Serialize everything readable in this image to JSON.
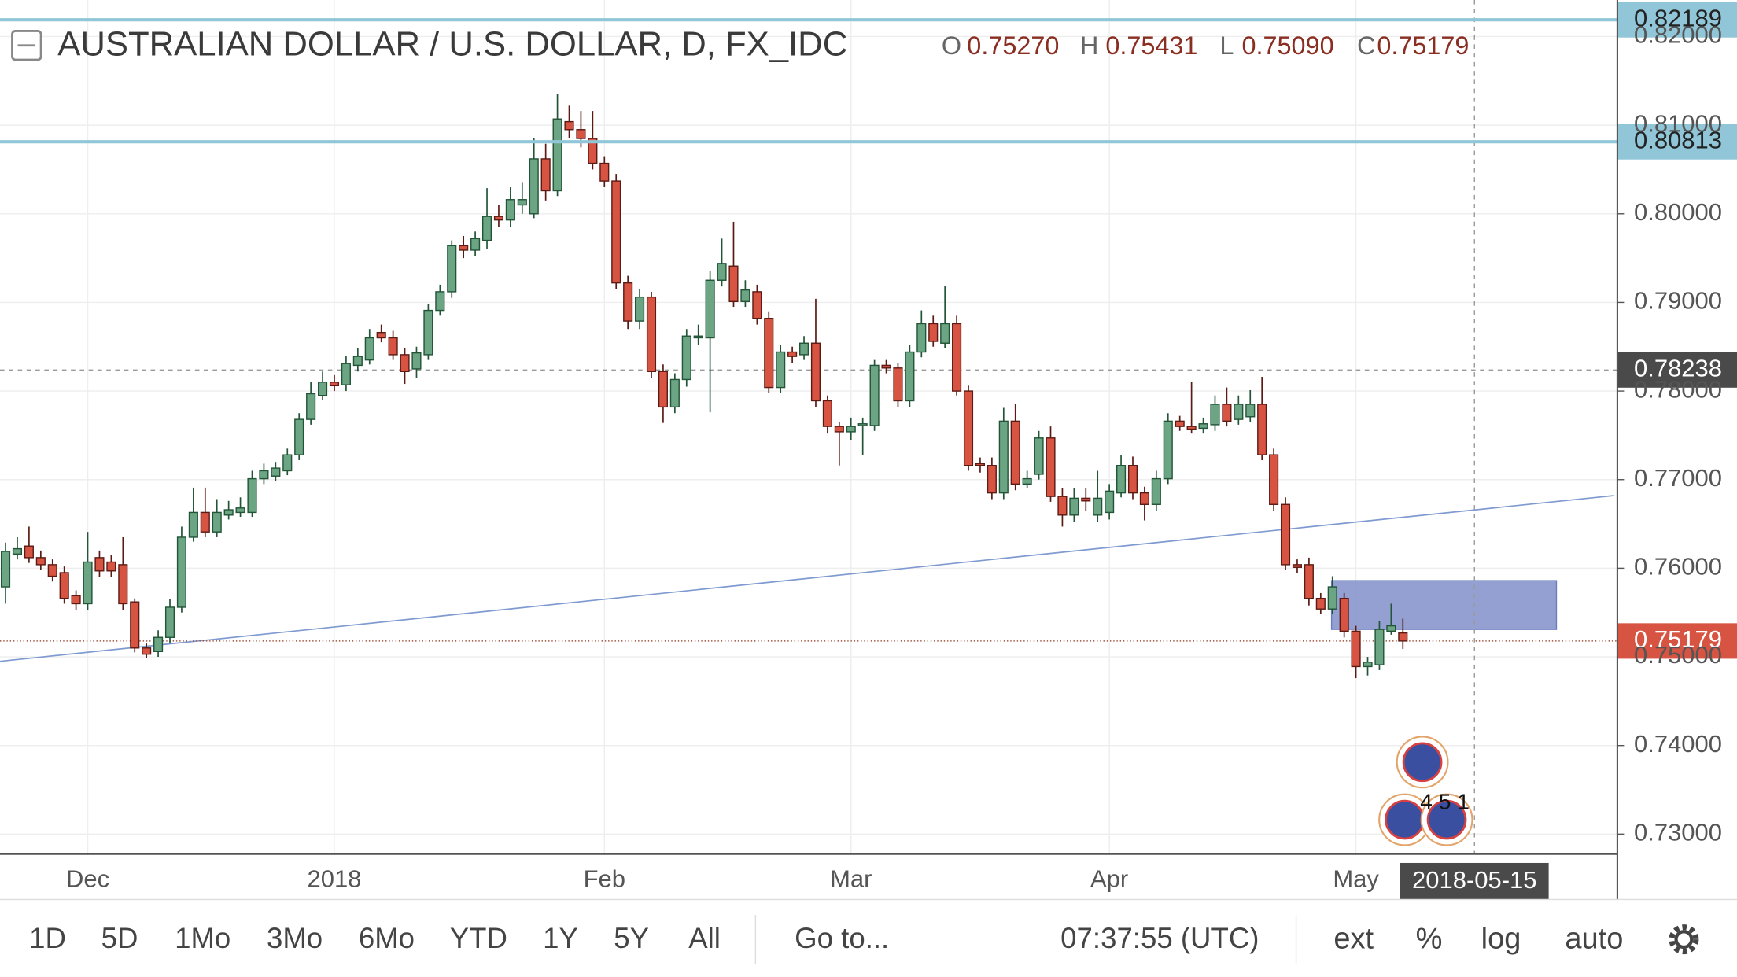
{
  "chart_data": {
    "type": "candlestick",
    "title": "AUSTRALIAN DOLLAR / U.S. DOLLAR, D, FX_IDC",
    "legend_values": [
      {
        "key": "O",
        "value": 0.7527,
        "label": "0.75270"
      },
      {
        "key": "H",
        "value": 0.75431,
        "label": "0.75431"
      },
      {
        "key": "L",
        "value": 0.7509,
        "label": "0.75090"
      },
      {
        "key": "C",
        "value": 0.75179,
        "label": "0.75179"
      }
    ],
    "categories": [
      null,
      null,
      null,
      null,
      null,
      null,
      null,
      "Dec",
      null,
      null,
      null,
      null,
      null,
      null,
      null,
      null,
      null,
      null,
      null,
      null,
      null,
      null,
      null,
      null,
      null,
      null,
      null,
      null,
      "2018",
      null,
      null,
      null,
      null,
      null,
      null,
      null,
      null,
      null,
      null,
      null,
      null,
      null,
      null,
      null,
      null,
      null,
      null,
      null,
      null,
      null,
      null,
      "Feb",
      null,
      null,
      null,
      null,
      null,
      null,
      null,
      null,
      null,
      null,
      null,
      null,
      null,
      null,
      null,
      null,
      null,
      null,
      null,
      null,
      "Mar",
      null,
      null,
      null,
      null,
      null,
      null,
      null,
      null,
      null,
      null,
      null,
      null,
      null,
      null,
      null,
      null,
      null,
      null,
      null,
      null,
      null,
      "Apr",
      null,
      null,
      null,
      null,
      null,
      null,
      null,
      null,
      null,
      null,
      null,
      null,
      null,
      null,
      null,
      null,
      null,
      null,
      null,
      null,
      "May",
      null,
      null,
      null,
      null
    ],
    "open": [
      0.7579,
      0.7616,
      0.7625,
      0.7612,
      0.7604,
      0.7595,
      0.7569,
      0.756,
      0.7612,
      0.7607,
      0.7604,
      0.7562,
      0.751,
      0.7506,
      0.7522,
      0.7556,
      0.7635,
      0.7663,
      0.7641,
      0.766,
      0.7663,
      0.7663,
      0.7701,
      0.7704,
      0.771,
      0.7728,
      0.7768,
      0.7795,
      0.781,
      0.7807,
      0.7829,
      0.7835,
      0.7866,
      0.786,
      0.7841,
      0.7825,
      0.7841,
      0.7891,
      0.7912,
      0.7964,
      0.7959,
      0.797,
      0.7997,
      0.7993,
      0.801,
      0.8,
      0.8062,
      0.8026,
      0.8104,
      0.8095,
      0.8085,
      0.8057,
      0.8037,
      0.7922,
      0.7879,
      0.7906,
      0.7822,
      0.7782,
      0.7813,
      0.786,
      0.786,
      0.7925,
      0.7941,
      0.7901,
      0.7912,
      0.7882,
      0.7804,
      0.7844,
      0.7841,
      0.7854,
      0.7789,
      0.776,
      0.7754,
      0.7761,
      0.7761,
      0.7829,
      0.7826,
      0.7789,
      0.7844,
      0.7876,
      0.7854,
      0.7876,
      0.78,
      0.7718,
      0.7716,
      0.7685,
      0.7766,
      0.7695,
      0.7706,
      0.7747,
      0.7681,
      0.766,
      0.7679,
      0.766,
      0.7663,
      0.7685,
      0.7716,
      0.7685,
      0.7672,
      0.7701,
      0.7766,
      0.776,
      0.7758,
      0.7762,
      0.7785,
      0.7768,
      0.7771,
      0.7785,
      0.7728,
      0.7672,
      0.7604,
      0.7604,
      0.7566,
      0.7554,
      0.7566,
      0.7529,
      0.7489,
      0.7491,
      0.7529,
      0.7527
    ],
    "high": [
      0.7629,
      0.7635,
      0.7647,
      0.762,
      0.761,
      0.7602,
      0.7575,
      0.7641,
      0.762,
      0.7615,
      0.7635,
      0.7566,
      0.7515,
      0.753,
      0.7565,
      0.7647,
      0.7691,
      0.7691,
      0.7678,
      0.7676,
      0.768,
      0.771,
      0.7718,
      0.772,
      0.7735,
      0.7775,
      0.781,
      0.7822,
      0.7818,
      0.784,
      0.7848,
      0.787,
      0.7875,
      0.7868,
      0.7848,
      0.785,
      0.7898,
      0.792,
      0.797,
      0.7975,
      0.798,
      0.8029,
      0.801,
      0.803,
      0.8035,
      0.8085,
      0.8079,
      0.8135,
      0.8122,
      0.8116,
      0.8116,
      0.8065,
      0.8045,
      0.793,
      0.7915,
      0.7912,
      0.783,
      0.782,
      0.787,
      0.7875,
      0.7935,
      0.7972,
      0.7991,
      0.7925,
      0.792,
      0.789,
      0.7852,
      0.785,
      0.7862,
      0.7904,
      0.7795,
      0.7765,
      0.777,
      0.777,
      0.7835,
      0.7835,
      0.7832,
      0.7852,
      0.7891,
      0.7885,
      0.7919,
      0.7885,
      0.7806,
      0.7725,
      0.7725,
      0.7781,
      0.7785,
      0.771,
      0.7755,
      0.776,
      0.769,
      0.769,
      0.769,
      0.771,
      0.7695,
      0.7728,
      0.7726,
      0.7692,
      0.771,
      0.7775,
      0.7772,
      0.781,
      0.777,
      0.7795,
      0.7804,
      0.7795,
      0.7801,
      0.7816,
      0.7735,
      0.768,
      0.761,
      0.7612,
      0.7572,
      0.7591,
      0.7572,
      0.7535,
      0.75,
      0.754,
      0.756,
      0.75431
    ],
    "low": [
      0.756,
      0.761,
      0.7606,
      0.7598,
      0.7585,
      0.756,
      0.7553,
      0.7553,
      0.759,
      0.759,
      0.7553,
      0.7505,
      0.7499,
      0.75,
      0.7515,
      0.755,
      0.763,
      0.7635,
      0.7635,
      0.7655,
      0.7658,
      0.7658,
      0.7695,
      0.7698,
      0.7705,
      0.7722,
      0.7762,
      0.779,
      0.78,
      0.78,
      0.7822,
      0.783,
      0.7855,
      0.7835,
      0.7808,
      0.7815,
      0.7835,
      0.7885,
      0.7905,
      0.795,
      0.7952,
      0.796,
      0.7985,
      0.7985,
      0.8,
      0.7995,
      0.8015,
      0.802,
      0.8085,
      0.8075,
      0.805,
      0.803,
      0.7915,
      0.787,
      0.787,
      0.7815,
      0.7764,
      0.7775,
      0.7805,
      0.7852,
      0.7776,
      0.7918,
      0.7895,
      0.7895,
      0.7875,
      0.7798,
      0.7798,
      0.7832,
      0.7835,
      0.7782,
      0.7752,
      0.7716,
      0.7745,
      0.7728,
      0.7755,
      0.782,
      0.7782,
      0.7782,
      0.7838,
      0.785,
      0.7848,
      0.7795,
      0.771,
      0.7708,
      0.7678,
      0.7678,
      0.7688,
      0.769,
      0.77,
      0.7675,
      0.7647,
      0.7652,
      0.7665,
      0.7652,
      0.7655,
      0.768,
      0.7678,
      0.7654,
      0.7665,
      0.7695,
      0.7755,
      0.7752,
      0.7752,
      0.7755,
      0.776,
      0.7762,
      0.7765,
      0.7722,
      0.7665,
      0.7598,
      0.7595,
      0.7558,
      0.7548,
      0.7548,
      0.7522,
      0.7476,
      0.7479,
      0.7485,
      0.7525,
      0.7509
    ],
    "close": [
      0.7619,
      0.7622,
      0.7612,
      0.7604,
      0.7591,
      0.7566,
      0.756,
      0.7607,
      0.7597,
      0.7597,
      0.756,
      0.751,
      0.7503,
      0.7522,
      0.7556,
      0.7635,
      0.7663,
      0.7641,
      0.7663,
      0.7666,
      0.7668,
      0.7701,
      0.771,
      0.7713,
      0.7728,
      0.7768,
      0.7797,
      0.781,
      0.7806,
      0.7831,
      0.7839,
      0.786,
      0.786,
      0.7841,
      0.7822,
      0.7843,
      0.7891,
      0.7912,
      0.7964,
      0.7959,
      0.7972,
      0.7997,
      0.7993,
      0.8016,
      0.8016,
      0.8062,
      0.8026,
      0.8107,
      0.8095,
      0.8085,
      0.8057,
      0.8037,
      0.7922,
      0.7879,
      0.7906,
      0.7822,
      0.7782,
      0.7813,
      0.7862,
      0.7862,
      0.7925,
      0.7944,
      0.7901,
      0.7914,
      0.7882,
      0.7804,
      0.7844,
      0.7839,
      0.7854,
      0.7789,
      0.776,
      0.7754,
      0.776,
      0.7763,
      0.7829,
      0.7826,
      0.7789,
      0.7844,
      0.7876,
      0.7856,
      0.7876,
      0.78,
      0.7716,
      0.7716,
      0.7685,
      0.7766,
      0.7695,
      0.7701,
      0.7747,
      0.7681,
      0.766,
      0.7679,
      0.7676,
      0.7679,
      0.7687,
      0.7716,
      0.7685,
      0.7672,
      0.7701,
      0.7766,
      0.776,
      0.7757,
      0.7763,
      0.7785,
      0.7766,
      0.7785,
      0.7785,
      0.7728,
      0.7672,
      0.7604,
      0.7601,
      0.7566,
      0.7554,
      0.7579,
      0.7529,
      0.7489,
      0.7494,
      0.7531,
      0.7535,
      0.75179
    ],
    "up_color": "#6ba583",
    "down_color": "#d75442",
    "ylim": [
      0.72775,
      0.824125
    ],
    "yticks": [
      {
        "value": 0.73,
        "label": "0.73000"
      },
      {
        "value": 0.74,
        "label": "0.74000"
      },
      {
        "value": 0.75,
        "label": "0.75000"
      },
      {
        "value": 0.76,
        "label": "0.76000"
      },
      {
        "value": 0.77,
        "label": "0.77000"
      },
      {
        "value": 0.78,
        "label": "0.78000"
      },
      {
        "value": 0.79,
        "label": "0.79000"
      },
      {
        "value": 0.8,
        "label": "0.80000"
      },
      {
        "value": 0.81,
        "label": "0.81000"
      },
      {
        "value": 0.82,
        "label": "0.82000"
      }
    ],
    "grid": true,
    "horizontal_lines": [
      {
        "value": 0.82189,
        "color": "#90c6d8"
      },
      {
        "value": 0.80813,
        "color": "#90c6d8"
      }
    ],
    "trendline": {
      "start": 0.7495,
      "end": 0.7682,
      "color": "#7f9ad0"
    },
    "zone": {
      "top": 0.7586,
      "bottom": 0.7531,
      "color": "#8796cc"
    },
    "last_price": 0.75179,
    "crosshair": {
      "price": 0.78238,
      "date": "2018-05-15"
    },
    "events_badge": "4 5 1"
  },
  "toolbar": {
    "ranges": [
      "1D",
      "5D",
      "1Mo",
      "3Mo",
      "6Mo",
      "YTD",
      "1Y",
      "5Y",
      "All"
    ],
    "goto": "Go to...",
    "clock": "07:37:55 (UTC)",
    "options": [
      "ext",
      "%",
      "log",
      "auto"
    ]
  }
}
